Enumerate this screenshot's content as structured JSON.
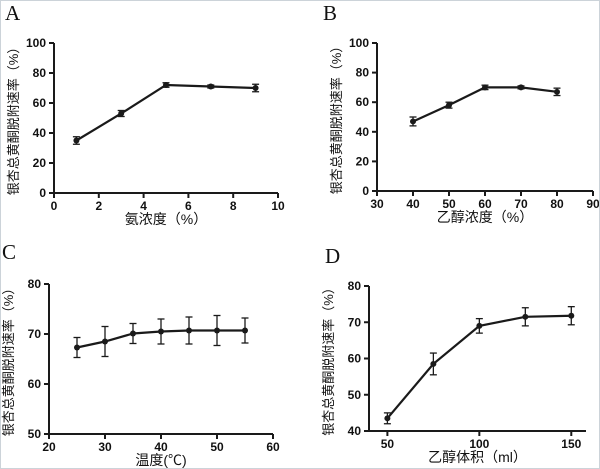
{
  "figure": {
    "description": "Four-panel line chart figure, panels A-D",
    "line_color": "#1a1a1a"
  },
  "chart_data": [
    {
      "panel": "A",
      "type": "line",
      "x": [
        1,
        3,
        5,
        7,
        9
      ],
      "y": [
        35,
        53,
        72,
        71,
        70
      ],
      "yerr": [
        2.5,
        2,
        1.5,
        1,
        2.5
      ],
      "title": "",
      "xlabel": "氨浓度（%）",
      "ylabel": "银杏总黄酮脱附速率（%）",
      "xlim": [
        0,
        10
      ],
      "ylim": [
        0,
        100
      ],
      "xticks": [
        0,
        2,
        4,
        6,
        8,
        10
      ],
      "yticks": [
        0,
        20,
        40,
        60,
        80,
        100
      ],
      "grid": false,
      "legend": null,
      "marker": "filled-circle",
      "color": "#1a1a1a"
    },
    {
      "panel": "B",
      "type": "line",
      "x": [
        40,
        50,
        60,
        70,
        80
      ],
      "y": [
        47,
        58,
        70,
        70,
        67
      ],
      "yerr": [
        3,
        2,
        1.5,
        1,
        2.5
      ],
      "title": "",
      "xlabel": "乙醇浓度（%）",
      "ylabel": "银杏总黄酮脱附速率（%）",
      "xlim": [
        30,
        90
      ],
      "ylim": [
        0,
        100
      ],
      "xticks": [
        30,
        40,
        50,
        60,
        70,
        80,
        90
      ],
      "yticks": [
        0,
        20,
        40,
        60,
        80,
        100
      ],
      "grid": false,
      "legend": null,
      "marker": "filled-circle",
      "color": "#1a1a1a"
    },
    {
      "panel": "C",
      "type": "line",
      "x": [
        25,
        30,
        35,
        40,
        45,
        50,
        55
      ],
      "y": [
        67.3,
        68.5,
        70.1,
        70.5,
        70.7,
        70.7,
        70.7
      ],
      "yerr": [
        2,
        3,
        2,
        2.5,
        2.7,
        3,
        2.5
      ],
      "title": "",
      "xlabel": "温度(℃)",
      "ylabel": "银杏总黄酮脱附速率（%）",
      "xlim": [
        20,
        60
      ],
      "ylim": [
        50,
        80
      ],
      "xticks": [
        20,
        30,
        40,
        50,
        60
      ],
      "yticks": [
        50,
        60,
        70,
        80
      ],
      "grid": false,
      "legend": null,
      "marker": "filled-circle",
      "color": "#1a1a1a"
    },
    {
      "panel": "D",
      "type": "line",
      "x": [
        50,
        75,
        100,
        125,
        150
      ],
      "y": [
        43.5,
        58.5,
        69,
        71.5,
        71.8
      ],
      "yerr": [
        1.5,
        3,
        2,
        2.5,
        2.5
      ],
      "title": "",
      "xlabel": "乙醇体积（ml）",
      "ylabel": "银杏总黄酮脱附速率（%）",
      "xlim": [
        40,
        158
      ],
      "ylim": [
        40,
        80
      ],
      "xticks": [
        50,
        100,
        150
      ],
      "yticks": [
        40,
        50,
        60,
        70,
        80
      ],
      "grid": false,
      "legend": null,
      "marker": "filled-circle",
      "color": "#1a1a1a"
    }
  ]
}
